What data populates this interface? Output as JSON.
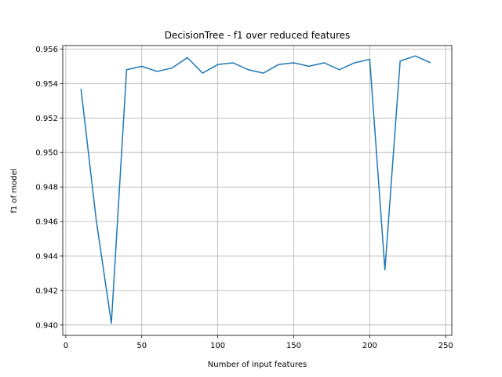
{
  "chart_data": {
    "type": "line",
    "title": "DecisionTree - f1 over reduced features",
    "xlabel": "Number of input features",
    "ylabel": "f1 of model",
    "xlim": [
      -2,
      254
    ],
    "ylim": [
      0.9394,
      0.9562
    ],
    "xticks": [
      0,
      50,
      100,
      150,
      200,
      250
    ],
    "yticks": [
      0.94,
      0.942,
      0.944,
      0.946,
      0.948,
      0.95,
      0.952,
      0.954,
      0.956
    ],
    "ytick_labels": [
      "0.940",
      "0.942",
      "0.944",
      "0.946",
      "0.948",
      "0.950",
      "0.952",
      "0.954",
      "0.956"
    ],
    "grid": true,
    "line_color": "#1f77b4",
    "series": [
      {
        "x": [
          10,
          20,
          30,
          40,
          50,
          60,
          70,
          80,
          90,
          100,
          110,
          120,
          130,
          140,
          150,
          160,
          170,
          180,
          190,
          200,
          210,
          220,
          230,
          240
        ],
        "values": [
          0.9537,
          0.9461,
          0.9401,
          0.9548,
          0.955,
          0.9547,
          0.9549,
          0.9555,
          0.9546,
          0.9551,
          0.9552,
          0.9548,
          0.9546,
          0.9551,
          0.9552,
          0.955,
          0.9552,
          0.9548,
          0.9552,
          0.9554,
          0.9432,
          0.9553,
          0.9556,
          0.9552
        ]
      }
    ]
  }
}
